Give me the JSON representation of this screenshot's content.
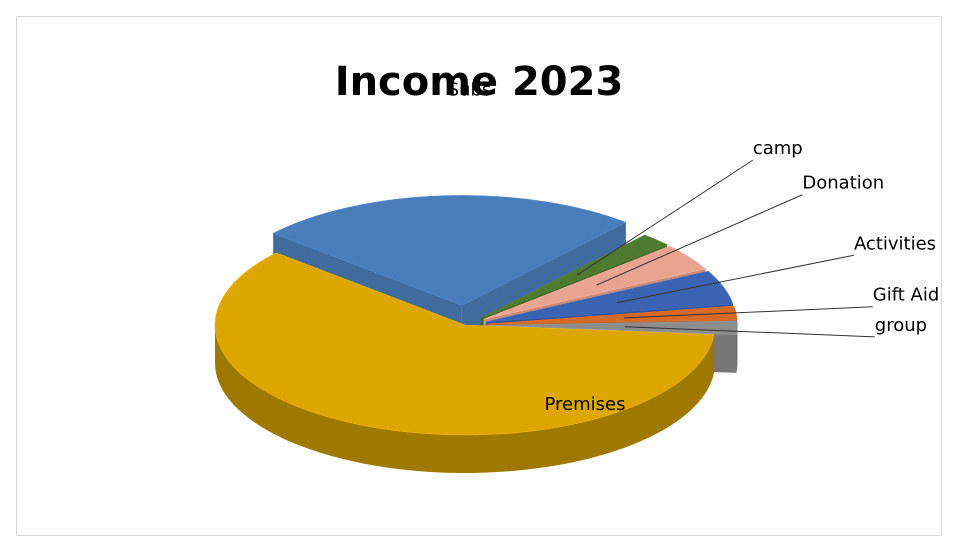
{
  "chart_data": {
    "type": "pie",
    "title": "Income 2023",
    "exploded": true,
    "three_d": true,
    "slices": [
      {
        "label": "Premises",
        "value": 60,
        "color": "#DDA600"
      },
      {
        "label": "Subs",
        "value": 25,
        "color": "#4A7EBB"
      },
      {
        "label": "camp",
        "value": 2,
        "color": "#4F7B31"
      },
      {
        "label": "Donation",
        "value": 4,
        "color": "#E8A490"
      },
      {
        "label": "Activities",
        "value": 5,
        "color": "#3A63B1"
      },
      {
        "label": "Gift Aid",
        "value": 2,
        "color": "#D46A26"
      },
      {
        "label": "group",
        "value": 2,
        "color": "#8C8C8C"
      }
    ],
    "legend": "none"
  }
}
